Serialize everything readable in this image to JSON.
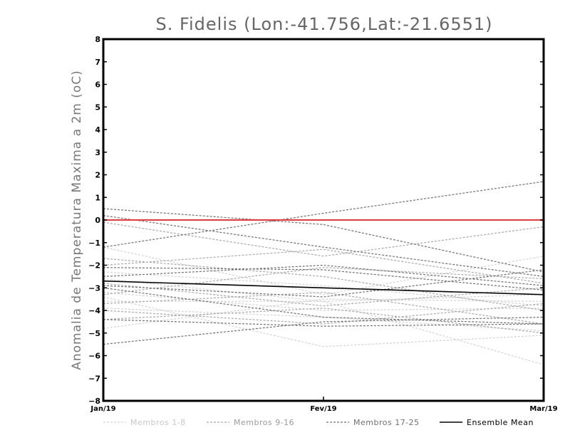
{
  "chart_data": {
    "type": "line",
    "title": "S. Fidelis (Lon:-41.756,Lat:-21.6551)",
    "ylabel": "Anomalia de Temperatura Maxima a 2m (oC)",
    "xlabel": "",
    "categories": [
      "Jan/19",
      "Fev/19",
      "Mar/19"
    ],
    "ylim": [
      -8,
      8
    ],
    "yticks": [
      -8,
      -7,
      -6,
      -5,
      -4,
      -3,
      -2,
      -1,
      0,
      1,
      2,
      3,
      4,
      5,
      6,
      7,
      8
    ],
    "reference_line": {
      "y": 0,
      "color": "#ff3333"
    },
    "grid": false,
    "legend_position": "bottom",
    "groups": [
      {
        "name": "Membros 1-8",
        "color": "#d3d3d3",
        "dash": true
      },
      {
        "name": "Membros 9-16",
        "color": "#a9a9a9",
        "dash": true
      },
      {
        "name": "Membros 17-25",
        "color": "#707070",
        "dash": true
      },
      {
        "name": "Ensemble Mean",
        "color": "#000000",
        "dash": false
      }
    ],
    "series": [
      {
        "group": 0,
        "values": [
          -1.2,
          -3.3,
          -1.6
        ]
      },
      {
        "group": 0,
        "values": [
          -2.6,
          -3.6,
          -6.4
        ]
      },
      {
        "group": 0,
        "values": [
          -3.4,
          -5.6,
          -5.1
        ]
      },
      {
        "group": 0,
        "values": [
          -3.9,
          -4.3,
          -4.9
        ]
      },
      {
        "group": 0,
        "values": [
          -4.8,
          -3.5,
          -3.6
        ]
      },
      {
        "group": 0,
        "values": [
          -3.2,
          -4.0,
          -3.9
        ]
      },
      {
        "group": 0,
        "values": [
          -2.3,
          -2.9,
          -3.8
        ]
      },
      {
        "group": 0,
        "values": [
          -3.6,
          -3.6,
          -3.3
        ]
      },
      {
        "group": 1,
        "values": [
          -0.1,
          -1.6,
          -0.3
        ]
      },
      {
        "group": 1,
        "values": [
          -1.7,
          -2.5,
          -4.0
        ]
      },
      {
        "group": 1,
        "values": [
          -2.0,
          -1.3,
          -2.8
        ]
      },
      {
        "group": 1,
        "values": [
          -2.8,
          -3.8,
          -3.0
        ]
      },
      {
        "group": 1,
        "values": [
          -3.3,
          -2.1,
          -2.6
        ]
      },
      {
        "group": 1,
        "values": [
          -3.7,
          -3.2,
          -4.6
        ]
      },
      {
        "group": 1,
        "values": [
          -4.0,
          -4.6,
          -3.7
        ]
      },
      {
        "group": 1,
        "values": [
          -4.4,
          -3.9,
          -5.0
        ]
      },
      {
        "group": 2,
        "values": [
          -1.2,
          0.3,
          1.7
        ]
      },
      {
        "group": 2,
        "values": [
          0.5,
          -0.2,
          -2.3
        ]
      },
      {
        "group": 2,
        "values": [
          0.2,
          -1.2,
          -2.5
        ]
      },
      {
        "group": 2,
        "values": [
          -2.1,
          -2.2,
          -3.1
        ]
      },
      {
        "group": 2,
        "values": [
          -2.5,
          -2.0,
          -2.9
        ]
      },
      {
        "group": 2,
        "values": [
          -2.9,
          -3.4,
          -2.2
        ]
      },
      {
        "group": 2,
        "values": [
          -3.0,
          -4.3,
          -4.6
        ]
      },
      {
        "group": 2,
        "values": [
          -4.4,
          -4.7,
          -4.6
        ]
      },
      {
        "group": 2,
        "values": [
          -5.5,
          -4.5,
          -4.3
        ]
      },
      {
        "group": 3,
        "values": [
          -2.7,
          -3.0,
          -3.3
        ]
      }
    ]
  }
}
